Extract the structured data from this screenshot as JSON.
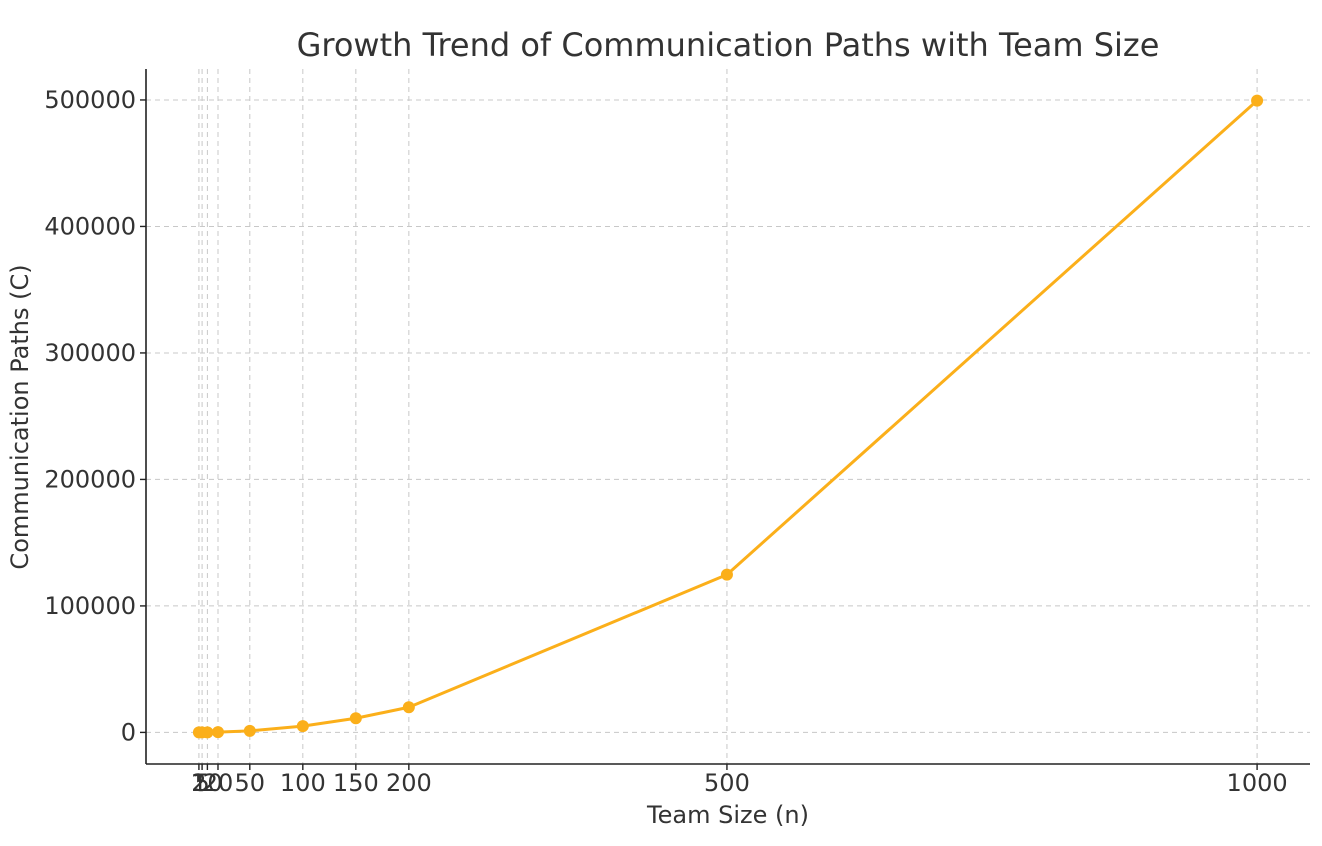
{
  "chart_data": {
    "type": "line",
    "title": "Growth Trend of Communication Paths with Team Size",
    "xlabel": "Team Size (n)",
    "ylabel": "Communication Paths (C)",
    "x": [
      2,
      5,
      10,
      20,
      50,
      100,
      150,
      200,
      500,
      1000
    ],
    "series": [
      {
        "values": [
          1,
          10,
          45,
          190,
          1225,
          4950,
          11175,
          19900,
          124750,
          499500
        ],
        "color": "#FBAF1A",
        "marker": "circle"
      }
    ],
    "xticks": [
      2,
      5,
      10,
      20,
      50,
      100,
      150,
      200,
      500,
      1000
    ],
    "xtick_labels": [
      "2",
      "5",
      "10",
      "20",
      "50",
      "100",
      "150",
      "200",
      "500",
      "1000"
    ],
    "yticks": [
      0,
      100000,
      200000,
      300000,
      400000,
      500000
    ],
    "ytick_labels": [
      "0",
      "100000",
      "200000",
      "300000",
      "400000",
      "500000"
    ],
    "xlim": [
      -47.9,
      1049.9
    ],
    "ylim": [
      -24975,
      524475
    ],
    "grid": true,
    "grid_style": "dashed",
    "legend": false
  }
}
